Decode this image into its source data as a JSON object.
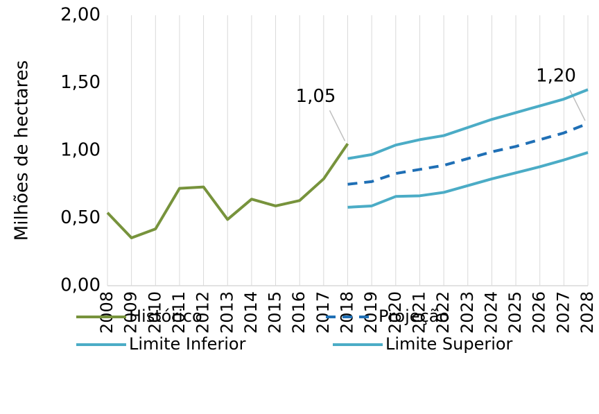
{
  "chart_data": {
    "type": "line",
    "ylabel": "Milhões de hectares",
    "categories": [
      "2008",
      "2009",
      "2010",
      "2011",
      "2012",
      "2013",
      "2014",
      "2015",
      "2016",
      "2017",
      "2018",
      "2019",
      "2020",
      "2021",
      "2022",
      "2023",
      "2024",
      "2025",
      "2026",
      "2027",
      "2028"
    ],
    "series": [
      {
        "name": "Histórico",
        "color": "#77933c",
        "dashed": false,
        "values": [
          0.54,
          0.354,
          0.42,
          0.72,
          0.73,
          0.49,
          0.64,
          0.59,
          0.63,
          0.79,
          1.05,
          null,
          null,
          null,
          null,
          null,
          null,
          null,
          null,
          null,
          null
        ],
        "value_labels": [
          null,
          null,
          null,
          null,
          null,
          null,
          null,
          null,
          null,
          null,
          "1,05",
          null,
          null,
          null,
          null,
          null,
          null,
          null,
          null,
          null,
          null
        ]
      },
      {
        "name": "Projeção",
        "color": "#1f6fb5",
        "dashed": true,
        "values": [
          null,
          null,
          null,
          null,
          null,
          null,
          null,
          null,
          null,
          null,
          0.75,
          0.77,
          0.83,
          0.86,
          0.89,
          0.94,
          0.99,
          1.03,
          1.08,
          1.13,
          1.2
        ],
        "value_labels": [
          null,
          null,
          null,
          null,
          null,
          null,
          null,
          null,
          null,
          null,
          null,
          null,
          null,
          null,
          null,
          null,
          null,
          null,
          null,
          null,
          "1,20"
        ]
      },
      {
        "name": "Limite Inferior",
        "color": "#4bacc6",
        "dashed": false,
        "values": [
          null,
          null,
          null,
          null,
          null,
          null,
          null,
          null,
          null,
          null,
          0.58,
          0.59,
          0.66,
          0.665,
          0.69,
          0.74,
          0.79,
          0.835,
          0.88,
          0.93,
          0.985
        ]
      },
      {
        "name": "Limite Superior",
        "color": "#4bacc6",
        "dashed": false,
        "values": [
          null,
          null,
          null,
          null,
          null,
          null,
          null,
          null,
          null,
          null,
          0.94,
          0.97,
          1.04,
          1.08,
          1.11,
          1.17,
          1.23,
          1.28,
          1.33,
          1.38,
          1.45
        ]
      }
    ],
    "ylim": [
      0,
      2
    ],
    "yticks": [
      {
        "value": 0,
        "label": "0,00"
      },
      {
        "value": 0.5,
        "label": "0,50"
      },
      {
        "value": 1,
        "label": "1,00"
      },
      {
        "value": 1.5,
        "label": "1,50"
      },
      {
        "value": 2,
        "label": "2,00"
      }
    ],
    "grid": "x",
    "legend": "bottom"
  }
}
